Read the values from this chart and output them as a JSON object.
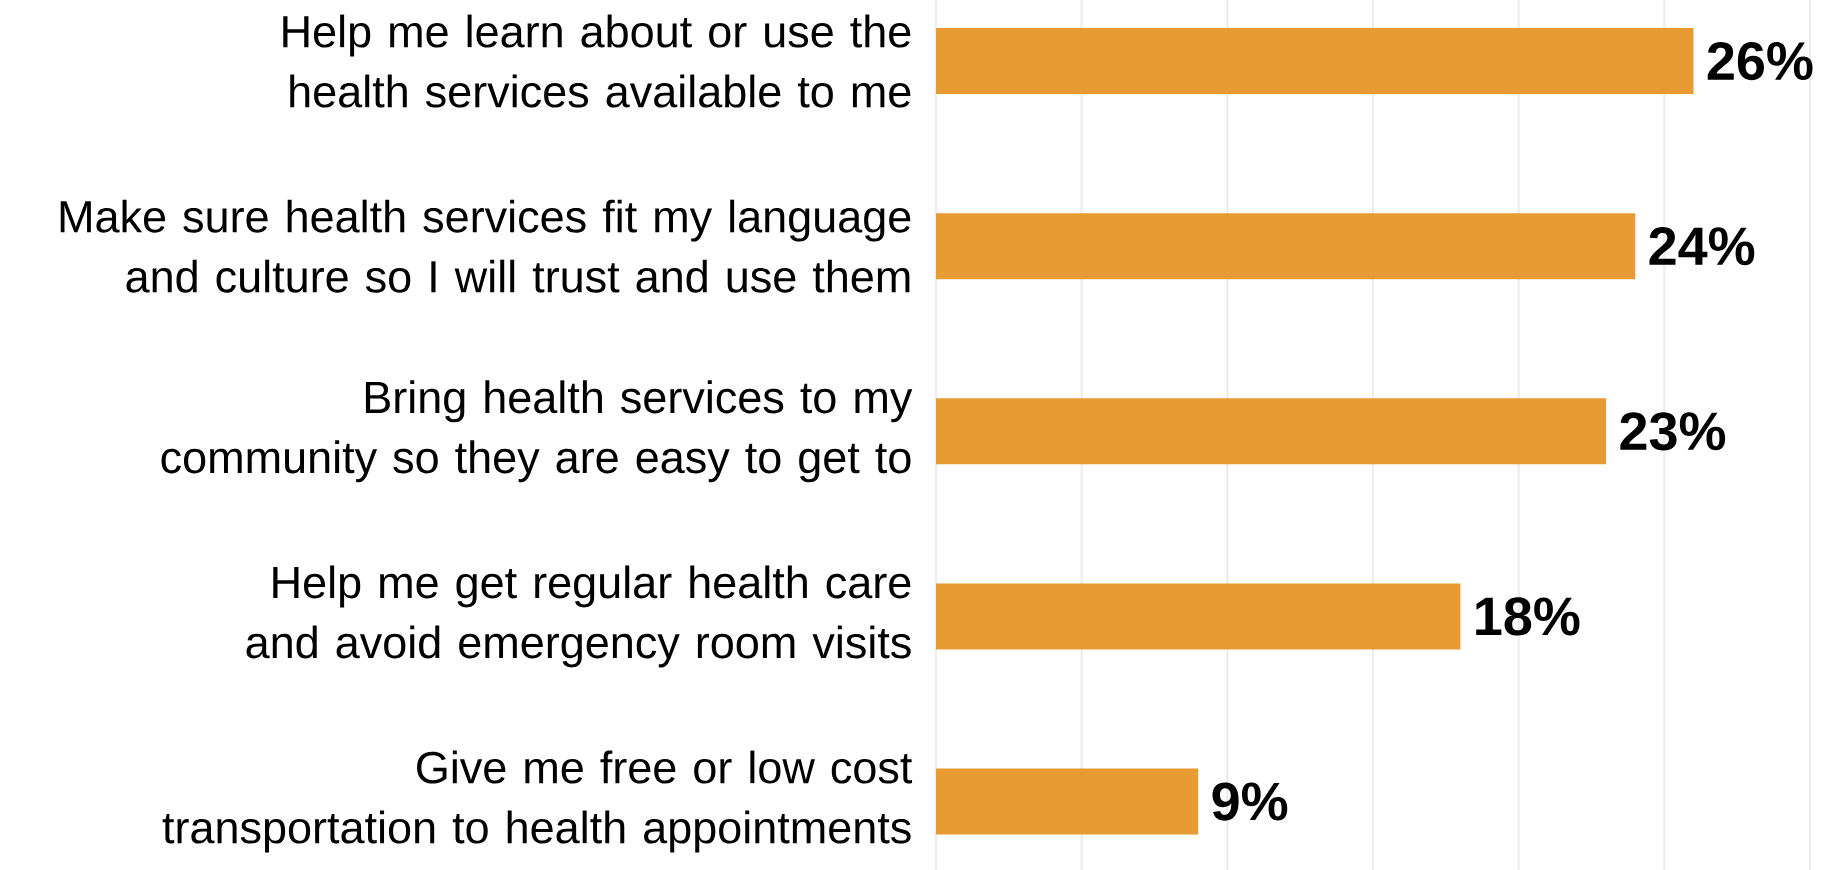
{
  "chart_data": {
    "type": "bar",
    "orientation": "horizontal",
    "categories": [
      "Help me learn about or use the health services available to me",
      "Make sure health services fit my language and culture so I will trust and use them",
      "Bring health services to my community so they are easy to get to",
      "Help me get regular health care and avoid emergency room visits",
      "Give me free or low cost transportation to health appointments"
    ],
    "values": [
      26,
      24,
      23,
      18,
      9
    ],
    "value_labels": [
      "26%",
      "24%",
      "23%",
      "18%",
      "9%"
    ],
    "color": "#e89a33",
    "xlim": [
      0,
      30
    ],
    "xticks": [
      {
        "value": 0,
        "label": null
      },
      {
        "value": 5,
        "label": null
      },
      {
        "value": 10,
        "label": null
      },
      {
        "value": 15,
        "label": null
      },
      {
        "value": 20,
        "label": null
      },
      {
        "value": 25,
        "label": null
      },
      {
        "value": 30,
        "label": null
      }
    ],
    "grid": "x",
    "tick_labels": "y"
  }
}
